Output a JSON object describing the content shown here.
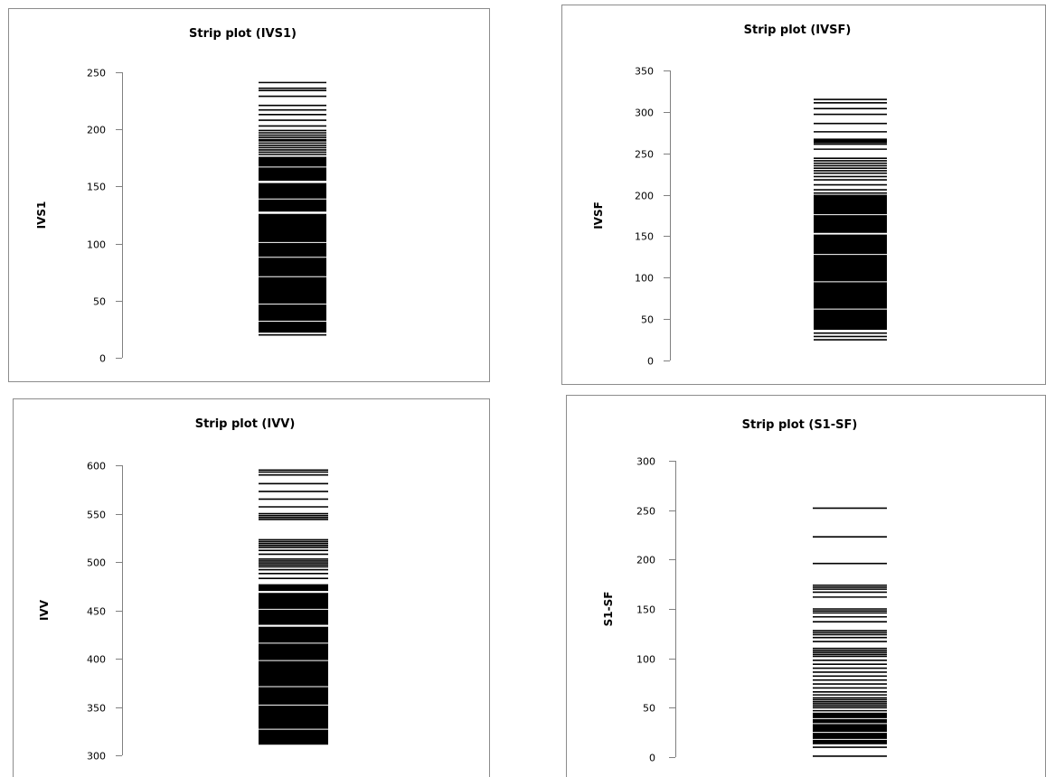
{
  "chart_data": [
    {
      "type": "strip",
      "title": "Strip plot  (IVS1)",
      "xlabel": "",
      "ylabel": "IVS1",
      "ylim": [
        0,
        250
      ],
      "yticks": [
        0,
        50,
        100,
        150,
        200,
        250
      ],
      "bands": [
        [
          22,
          126
        ],
        [
          128,
          153
        ],
        [
          155,
          176
        ]
      ],
      "values": [
        20,
        178,
        180,
        182,
        184,
        186,
        188,
        190,
        191,
        193,
        195,
        197,
        199,
        203,
        208,
        213,
        217,
        221,
        229,
        234,
        236,
        241
      ],
      "gaps": [
        32,
        47,
        71,
        88,
        101,
        139,
        167
      ]
    },
    {
      "type": "strip",
      "title": "Strip plot  (IVSF)",
      "xlabel": "",
      "ylabel": "IVSF",
      "ylim": [
        0,
        350
      ],
      "yticks": [
        0,
        50,
        100,
        150,
        200,
        250,
        300,
        350
      ],
      "bands": [
        [
          37,
          152
        ],
        [
          154,
          200
        ]
      ],
      "values": [
        25,
        29,
        33,
        202,
        206,
        212,
        218,
        222,
        226,
        229,
        232,
        235,
        238,
        241,
        244,
        255,
        261,
        263,
        264,
        265,
        266,
        267,
        276,
        286,
        297,
        304,
        311,
        315
      ],
      "gaps": [
        62,
        95,
        128,
        176
      ]
    },
    {
      "type": "strip",
      "title": "Strip plot  (IVV)",
      "xlabel": "",
      "ylabel": "IVV",
      "ylim": [
        300,
        600
      ],
      "yticks": [
        300,
        350,
        400,
        450,
        500,
        550,
        600
      ],
      "bands": [
        [
          311,
          433
        ],
        [
          435,
          468
        ],
        [
          470,
          477
        ]
      ],
      "values": [
        483,
        488,
        492,
        495,
        497,
        499,
        501,
        503,
        508,
        512,
        515,
        517,
        519,
        521,
        523,
        544,
        546,
        548,
        550,
        557,
        565,
        573,
        581,
        590,
        593,
        595
      ],
      "gaps": [
        327,
        352,
        371,
        398,
        416,
        451
      ]
    },
    {
      "type": "strip",
      "title": "Strip plot  (S1-SF)",
      "xlabel": "",
      "ylabel": "S1-SF",
      "ylim": [
        0,
        300
      ],
      "yticks": [
        0,
        50,
        100,
        150,
        200,
        250,
        300
      ],
      "bands": [
        [
          13,
          45
        ]
      ],
      "values": [
        1,
        10,
        47,
        50,
        52,
        54,
        56,
        58,
        60,
        63,
        66,
        70,
        74,
        78,
        82,
        86,
        90,
        94,
        98,
        102,
        104,
        106,
        108,
        110,
        117,
        121,
        124,
        126,
        128,
        137,
        142,
        146,
        148,
        150,
        162,
        167,
        170,
        172,
        174,
        196,
        223,
        252
      ],
      "gaps": [
        18,
        25,
        34,
        39
      ]
    }
  ]
}
